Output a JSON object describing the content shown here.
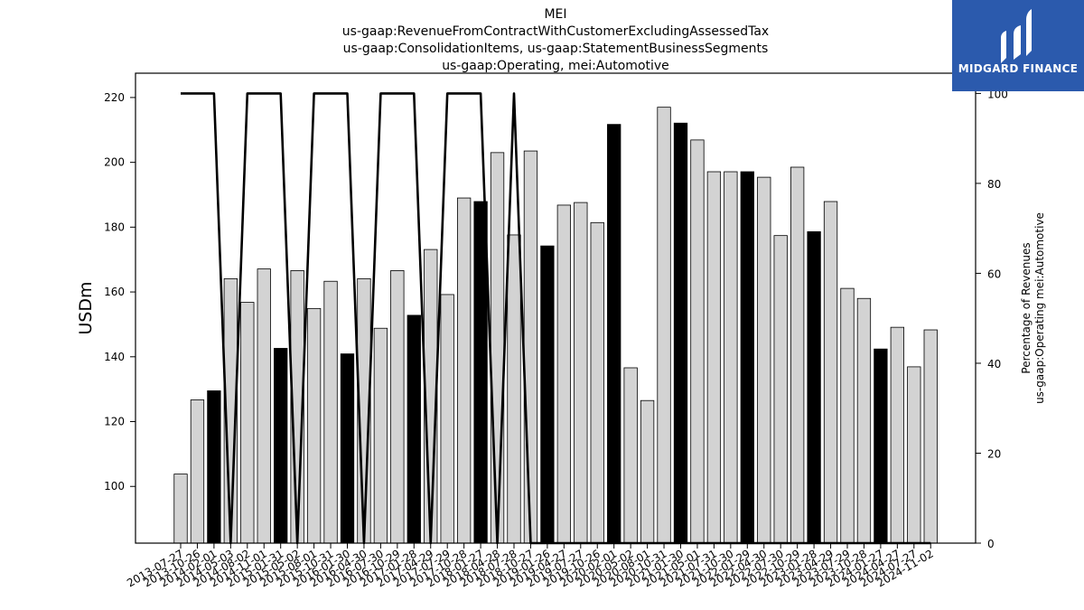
{
  "chart_data": {
    "type": "bar",
    "title": [
      "MEI",
      "us-gaap:RevenueFromContractWithCustomerExcludingAssessedTax",
      "us-gaap:ConsolidationItems, us-gaap:StatementBusinessSegments",
      "us-gaap:Operating, mei:Automotive"
    ],
    "ylabel": "USDm",
    "y2label": [
      "Percentage of Revenues",
      "us-gaap:Operating mei:Automotive"
    ],
    "ylim": [
      82.5,
      227.5
    ],
    "y2lim": [
      0,
      104.5
    ],
    "yticks": [
      100,
      120,
      140,
      160,
      180,
      200,
      220
    ],
    "y2ticks": [
      0,
      20,
      40,
      60,
      80,
      100
    ],
    "categories": [
      "2013-07-27",
      "2013-10-26",
      "2014-02-01",
      "2014-05-03",
      "2014-08-02",
      "2014-11-01",
      "2015-01-31",
      "2015-05-02",
      "2015-08-01",
      "2015-10-31",
      "2016-01-30",
      "2016-04-30",
      "2016-07-30",
      "2016-10-29",
      "2017-01-28",
      "2017-04-29",
      "2017-07-29",
      "2017-10-28",
      "2018-01-27",
      "2018-04-28",
      "2018-07-28",
      "2018-10-27",
      "2019-01-26",
      "2019-04-27",
      "2019-07-27",
      "2019-10-26",
      "2020-02-01",
      "2020-05-02",
      "2020-08-01",
      "2020-10-31",
      "2021-01-30",
      "2021-05-01",
      "2021-07-31",
      "2021-10-30",
      "2022-01-29",
      "2022-04-30",
      "2022-07-30",
      "2022-10-29",
      "2023-01-28",
      "2023-04-29",
      "2023-07-29",
      "2023-10-28",
      "2024-01-27",
      "2024-04-27",
      "2024-07-27",
      "2024-11-02"
    ],
    "values": [
      103.8,
      126.7,
      129.5,
      164.1,
      156.8,
      167.1,
      142.6,
      166.6,
      154.9,
      163.3,
      140.9,
      164.1,
      148.8,
      166.6,
      152.8,
      173.1,
      159.2,
      189.0,
      187.9,
      203.0,
      177.6,
      203.5,
      174.2,
      186.8,
      187.6,
      181.4,
      211.7,
      136.6,
      126.5,
      217.0,
      212.1,
      206.9,
      197.1,
      197.1,
      197.1,
      195.4,
      177.4,
      198.5,
      178.6,
      187.9,
      161.1,
      158.0,
      142.4,
      149.1,
      136.9,
      148.3
    ],
    "highlighted": [
      false,
      false,
      true,
      false,
      false,
      false,
      true,
      false,
      false,
      false,
      true,
      false,
      false,
      false,
      true,
      false,
      false,
      false,
      true,
      false,
      false,
      false,
      true,
      false,
      false,
      false,
      true,
      false,
      false,
      false,
      true,
      false,
      false,
      false,
      true,
      false,
      false,
      false,
      true,
      false,
      false,
      false,
      true,
      false,
      false,
      false
    ],
    "series": [
      {
        "name": "Percentage of Revenues",
        "axis": "right",
        "type": "line",
        "values": [
          100,
          100,
          100,
          0,
          100,
          100,
          100,
          0,
          100,
          100,
          100,
          0,
          100,
          100,
          100,
          0,
          100,
          100,
          100,
          0,
          100,
          0,
          0,
          0,
          0,
          0,
          0,
          0,
          0,
          0,
          0,
          0,
          0,
          0,
          0,
          0,
          0,
          0,
          0,
          0,
          0,
          0,
          0,
          0,
          0,
          0
        ]
      }
    ],
    "colors": {
      "bar": "#d3d3d3",
      "bar_highlight": "#000000",
      "line": "#000000",
      "edge": "#000000"
    }
  },
  "logo": {
    "text": "MIDGARD FINANCE",
    "background": "#2b5aad"
  }
}
